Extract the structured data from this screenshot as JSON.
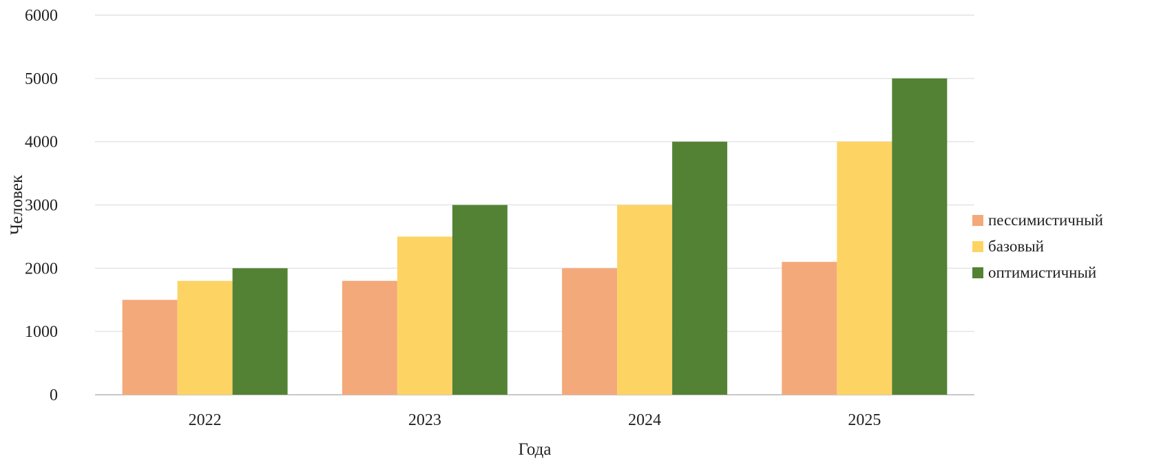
{
  "chart_data": {
    "type": "bar",
    "title": "",
    "xlabel": "Года",
    "ylabel": "Человек",
    "categories": [
      "2022",
      "2023",
      "2024",
      "2025"
    ],
    "ylim": [
      0,
      6000
    ],
    "yticks": [
      0,
      1000,
      2000,
      3000,
      4000,
      5000,
      6000
    ],
    "grid": true,
    "legend_position": "right",
    "series": [
      {
        "name": "пессимистичный",
        "color": "#f4a97a",
        "values": [
          1500,
          1800,
          2000,
          2100
        ]
      },
      {
        "name": "базовый",
        "color": "#fdd464",
        "values": [
          1800,
          2500,
          3000,
          4000
        ]
      },
      {
        "name": "оптимистичный",
        "color": "#538235",
        "values": [
          2000,
          3000,
          4000,
          5000
        ]
      }
    ]
  }
}
